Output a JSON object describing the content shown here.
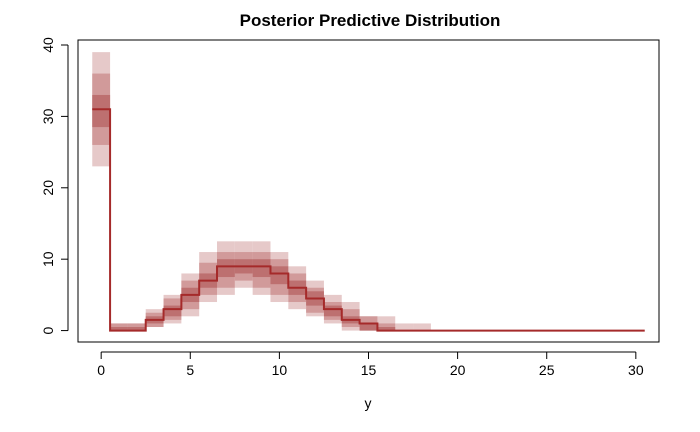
{
  "chart_data": {
    "type": "step",
    "title": "Posterior Predictive Distribution",
    "xlabel": "y",
    "ylabel": "",
    "xlim": [
      -1.3,
      31.3
    ],
    "ylim": [
      -1.6,
      40.7
    ],
    "xticks": [
      0,
      5,
      10,
      15,
      20,
      25,
      30
    ],
    "yticks": [
      0,
      10,
      20,
      30,
      40
    ],
    "grid": false,
    "colors": {
      "line": "#a52a2a",
      "band_light": "#deb7b7",
      "band_mid": "#c98a8a",
      "band_dark": "#b56161"
    },
    "x": [
      0,
      1,
      2,
      3,
      4,
      5,
      6,
      7,
      8,
      9,
      10,
      11,
      12,
      13,
      14,
      15,
      16,
      17,
      18,
      19,
      20,
      21,
      22,
      23,
      24,
      25,
      26,
      27,
      28,
      29,
      30
    ],
    "median": [
      31,
      0,
      0,
      1.5,
      3,
      5,
      7,
      9,
      9,
      9,
      8,
      6,
      4.5,
      3,
      1.5,
      1,
      0,
      0,
      0,
      0,
      0,
      0,
      0,
      0,
      0,
      0,
      0,
      0,
      0,
      0,
      0
    ],
    "intervals": [
      {
        "level": "outer",
        "lower": [
          23,
          0,
          0,
          0.5,
          1,
          2,
          4,
          5,
          6,
          5,
          4,
          3,
          2,
          1,
          0,
          0,
          0,
          0,
          0,
          0,
          0,
          0,
          0,
          0,
          0,
          0,
          0,
          0,
          0,
          0,
          0
        ],
        "upper": [
          39,
          1,
          1,
          3,
          5,
          8,
          11,
          12.5,
          12.5,
          12.5,
          11,
          9,
          7,
          5,
          4,
          2,
          2,
          1,
          1,
          0,
          0,
          0,
          0,
          0,
          0,
          0,
          0,
          0,
          0,
          0,
          0
        ]
      },
      {
        "level": "mid",
        "lower": [
          26,
          0,
          0,
          0.5,
          1.5,
          3,
          5,
          6,
          7,
          6,
          5,
          4,
          2.5,
          1.5,
          0.5,
          0,
          0,
          0,
          0,
          0,
          0,
          0,
          0,
          0,
          0,
          0,
          0,
          0,
          0,
          0,
          0
        ],
        "upper": [
          36,
          1,
          1,
          2.5,
          4.5,
          7,
          9.5,
          11,
          11,
          11,
          10,
          8,
          6,
          4,
          3,
          2,
          1,
          0,
          0,
          0,
          0,
          0,
          0,
          0,
          0,
          0,
          0,
          0,
          0,
          0,
          0
        ]
      },
      {
        "level": "inner",
        "lower": [
          28.5,
          0,
          0,
          1,
          2,
          4,
          6,
          7.5,
          8,
          7.5,
          6.5,
          5,
          3.5,
          2,
          1,
          0,
          0,
          0,
          0,
          0,
          0,
          0,
          0,
          0,
          0,
          0,
          0,
          0,
          0,
          0,
          0
        ],
        "upper": [
          33,
          0.5,
          0.5,
          2,
          3.5,
          6,
          8,
          10,
          10,
          10,
          9,
          7,
          5.5,
          3.5,
          2,
          1,
          0.5,
          0,
          0,
          0,
          0,
          0,
          0,
          0,
          0,
          0,
          0,
          0,
          0,
          0,
          0
        ]
      }
    ]
  }
}
